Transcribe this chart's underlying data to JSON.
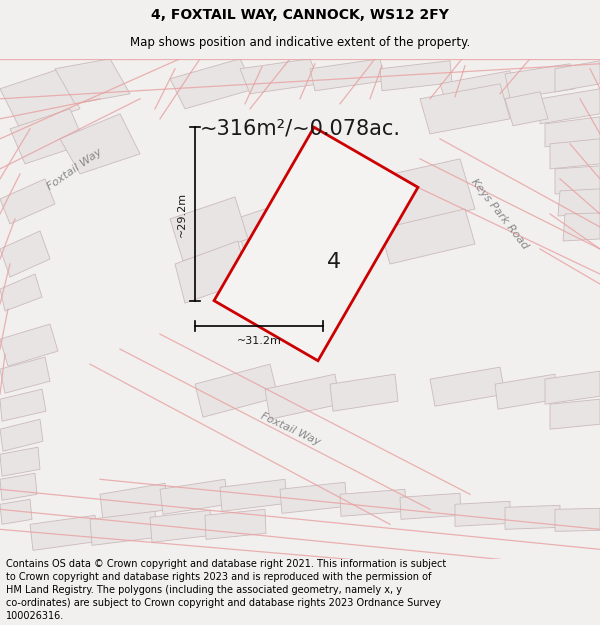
{
  "title_line1": "4, FOXTAIL WAY, CANNOCK, WS12 2FY",
  "title_line2": "Map shows position and indicative extent of the property.",
  "area_text": "~316m²/~0.078ac.",
  "plot_number": "4",
  "dim_width": "~31.2m",
  "dim_height": "~29.2m",
  "label_foxtail_way_left": "Foxtail Way",
  "label_foxtail_way_bottom": "Foxtail Way",
  "label_keys_park_road": "Keys Park Road",
  "footer_text": "Contains OS data © Crown copyright and database right 2021. This information is subject\nto Crown copyright and database rights 2023 and is reproduced with the permission of\nHM Land Registry. The polygons (including the associated geometry, namely x, y\nco-ordinates) are subject to Crown copyright and database rights 2023 Ordnance Survey\n100026316.",
  "bg_color": "#f2efef",
  "map_bg_color": "#eeebeb",
  "road_line_color": "#e8a0a0",
  "building_edge_color": "#ccbbbb",
  "building_fill_color": "#e8e4e4",
  "highlight_color": "#cc0000",
  "plot_fill": "#f0ededed",
  "title_fontsize": 10,
  "subtitle_fontsize": 8.5,
  "area_fontsize": 15,
  "plot_number_fontsize": 16,
  "footer_fontsize": 7,
  "label_fontsize": 8
}
